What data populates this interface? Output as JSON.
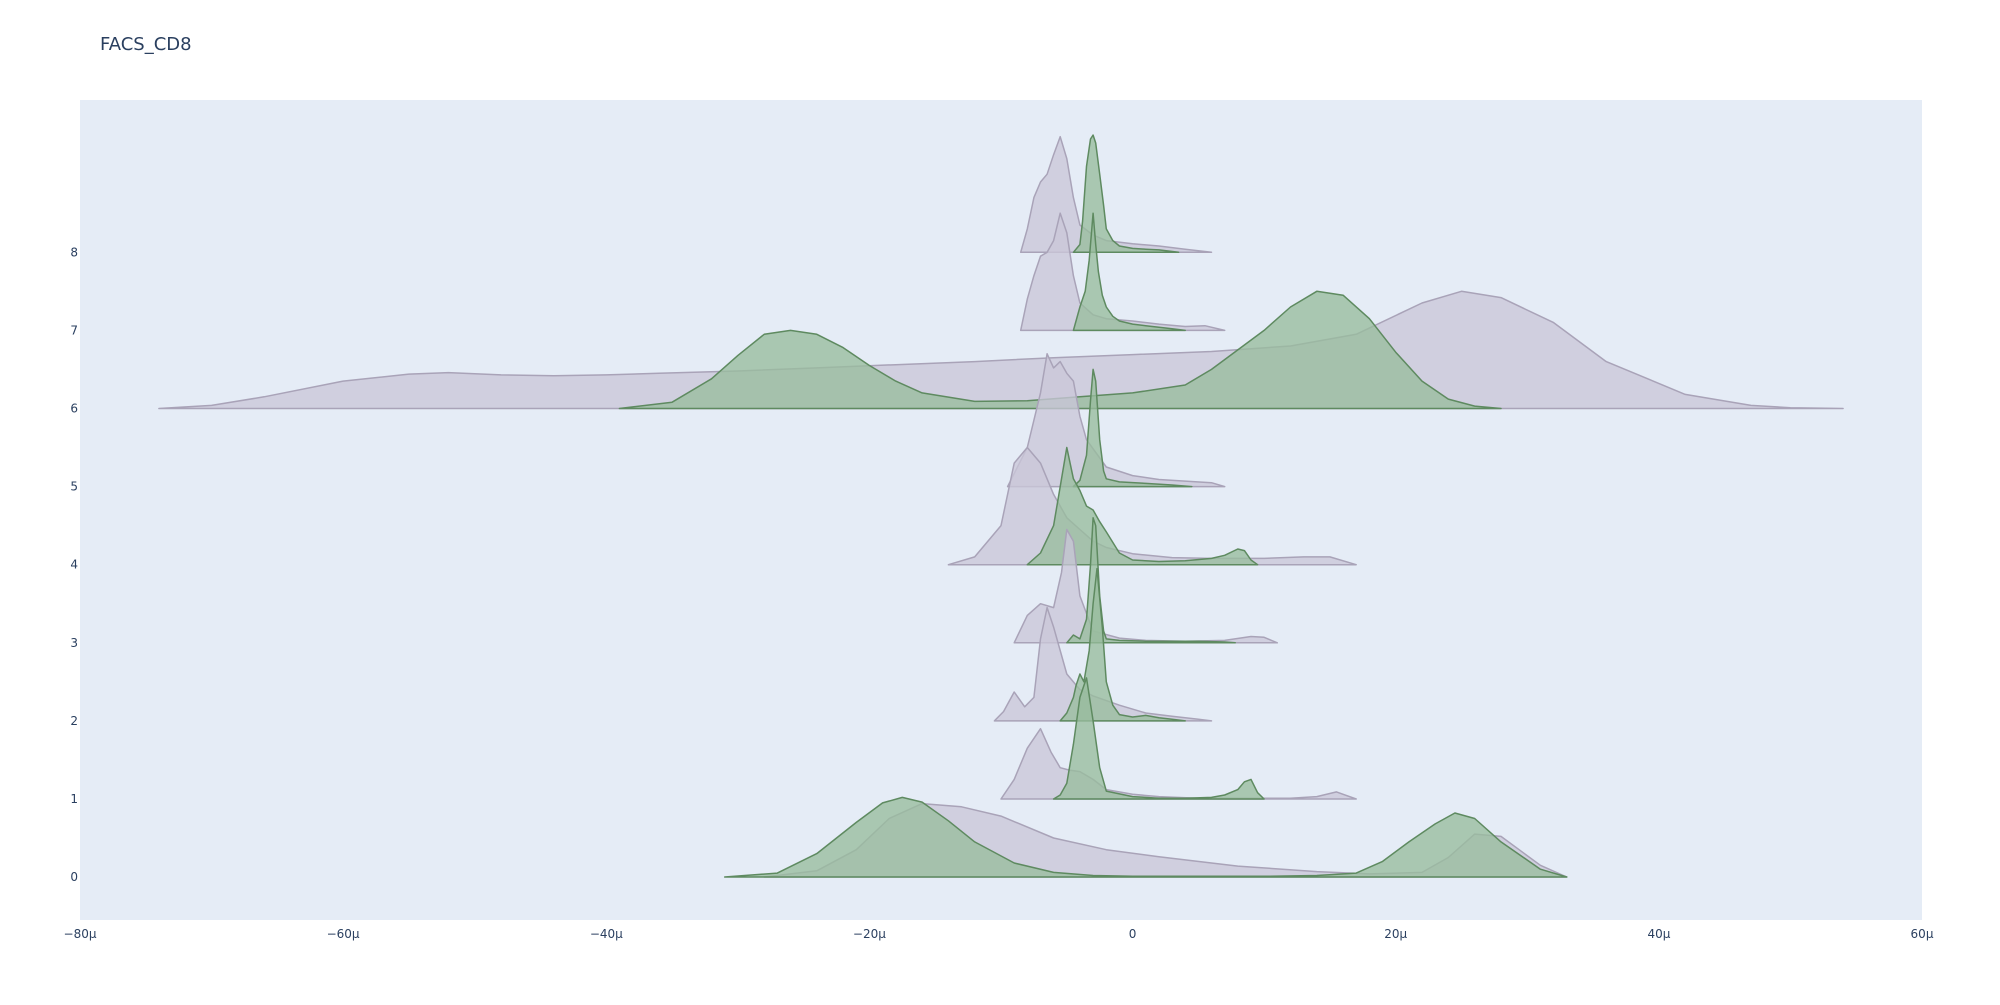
{
  "chart_data": {
    "type": "ridgeline",
    "title": "FACS_CD8",
    "xlabel": "",
    "ylabel": "",
    "xlim": [
      -80,
      60
    ],
    "ylim": [
      -0.55,
      9.95
    ],
    "x_unit": "μ",
    "x_ticks": [
      -80,
      -60,
      -40,
      -20,
      0,
      20,
      40,
      60
    ],
    "x_tick_labels": [
      "−80μ",
      "−60μ",
      "−40μ",
      "−20μ",
      "0",
      "20μ",
      "40μ",
      "60μ"
    ],
    "y_ticks": [
      0,
      1,
      2,
      3,
      4,
      5,
      6,
      7,
      8
    ],
    "y_tick_labels": [
      "0",
      "1",
      "2",
      "3",
      "4",
      "5",
      "6",
      "7",
      "8"
    ],
    "grid": false,
    "plot_bgcolor": "#e5ecf6",
    "series": [
      {
        "color": "#a9a3b8",
        "fill": "#cbc7d9",
        "ridges": [
          {
            "level": 0,
            "x": [
              -28,
              -24,
              -21,
              -18.5,
              -16,
              -13,
              -10,
              -6,
              -2,
              2,
              8,
              14,
              18,
              22,
              24,
              26,
              28,
              31,
              33
            ],
            "y": [
              0,
              0.08,
              0.35,
              0.75,
              0.94,
              0.9,
              0.78,
              0.5,
              0.35,
              0.26,
              0.14,
              0.07,
              0.04,
              0.06,
              0.25,
              0.55,
              0.52,
              0.15,
              0
            ]
          },
          {
            "level": 1,
            "x": [
              -10,
              -9,
              -8,
              -7,
              -6.2,
              -5.5,
              -4.8,
              -4,
              -3,
              -2,
              0,
              2,
              5,
              8,
              12,
              14,
              15.5,
              17
            ],
            "y": [
              0,
              0.25,
              0.65,
              0.9,
              0.6,
              0.4,
              0.37,
              0.35,
              0.25,
              0.12,
              0.06,
              0.03,
              0.01,
              0.01,
              0.01,
              0.03,
              0.09,
              0
            ]
          },
          {
            "level": 2,
            "x": [
              -10.5,
              -9.8,
              -9,
              -8.2,
              -7.5,
              -7,
              -6.5,
              -6,
              -5,
              -4,
              -3,
              -1,
              1,
              3,
              5,
              6
            ],
            "y": [
              0,
              0.12,
              0.37,
              0.18,
              0.3,
              1.05,
              1.45,
              1.2,
              0.6,
              0.4,
              0.32,
              0.2,
              0.1,
              0.06,
              0.02,
              0
            ]
          },
          {
            "level": 3,
            "x": [
              -9,
              -8,
              -7,
              -6,
              -5.4,
              -5,
              -4.5,
              -4,
              -3,
              -1,
              1,
              4,
              7,
              9,
              10,
              11
            ],
            "y": [
              0,
              0.35,
              0.5,
              0.45,
              0.9,
              1.45,
              1.3,
              0.6,
              0.15,
              0.06,
              0.03,
              0.02,
              0.03,
              0.08,
              0.07,
              0
            ]
          },
          {
            "level": 4,
            "x": [
              -14,
              -12,
              -10,
              -9,
              -8,
              -7,
              -6,
              -5,
              -4,
              -3,
              -2,
              0,
              3,
              6,
              10,
              13,
              15,
              17
            ],
            "y": [
              0,
              0.1,
              0.5,
              1.3,
              1.5,
              1.3,
              0.9,
              0.6,
              0.45,
              0.3,
              0.22,
              0.14,
              0.09,
              0.08,
              0.08,
              0.1,
              0.1,
              0
            ]
          },
          {
            "level": 5,
            "x": [
              -9.5,
              -8,
              -7,
              -6.5,
              -6,
              -5.5,
              -5,
              -4.5,
              -4,
              -3.5,
              -2,
              0,
              2,
              4,
              6,
              7
            ],
            "y": [
              0,
              0.5,
              1.2,
              1.7,
              1.52,
              1.6,
              1.45,
              1.35,
              0.9,
              0.6,
              0.25,
              0.14,
              0.09,
              0.07,
              0.05,
              0
            ]
          },
          {
            "level": 6,
            "x": [
              -74,
              -70,
              -66,
              -60,
              -55,
              -52,
              -48,
              -44,
              -40,
              -36,
              -30,
              -24,
              -18,
              -12,
              -6,
              0,
              6,
              12,
              17,
              22,
              25,
              28,
              32,
              36,
              42,
              47,
              50,
              54
            ],
            "y": [
              0,
              0.04,
              0.15,
              0.35,
              0.44,
              0.46,
              0.43,
              0.42,
              0.43,
              0.45,
              0.48,
              0.52,
              0.56,
              0.6,
              0.65,
              0.69,
              0.73,
              0.8,
              0.95,
              1.35,
              1.5,
              1.42,
              1.1,
              0.6,
              0.18,
              0.04,
              0.01,
              0
            ]
          },
          {
            "level": 7,
            "x": [
              -8.5,
              -8,
              -7.5,
              -7,
              -6.5,
              -6,
              -5.5,
              -5,
              -4.5,
              -4,
              -3,
              -2,
              0,
              2,
              4,
              5.5,
              7
            ],
            "y": [
              0,
              0.4,
              0.7,
              0.95,
              1.0,
              1.15,
              1.5,
              1.25,
              0.7,
              0.35,
              0.2,
              0.15,
              0.12,
              0.08,
              0.05,
              0.06,
              0
            ]
          },
          {
            "level": 8,
            "x": [
              -8.5,
              -8,
              -7.5,
              -7,
              -6.5,
              -6,
              -5.5,
              -5,
              -4.5,
              -4,
              -3,
              -2,
              0,
              2,
              4,
              6
            ],
            "y": [
              0,
              0.3,
              0.7,
              0.9,
              1.0,
              1.25,
              1.48,
              1.2,
              0.7,
              0.35,
              0.22,
              0.15,
              0.11,
              0.08,
              0.04,
              0
            ]
          }
        ]
      },
      {
        "color": "#5e8a60",
        "fill": "#99bc9d",
        "ridges": [
          {
            "level": 0,
            "x": [
              -31,
              -27,
              -24,
              -21,
              -19,
              -17.5,
              -16,
              -14,
              -12,
              -9,
              -6,
              -3,
              0,
              5,
              10,
              14,
              17,
              19,
              21,
              23,
              24.5,
              26,
              28,
              31,
              33
            ],
            "y": [
              0,
              0.05,
              0.3,
              0.7,
              0.95,
              1.02,
              0.96,
              0.72,
              0.45,
              0.18,
              0.06,
              0.02,
              0.01,
              0.01,
              0.01,
              0.02,
              0.05,
              0.2,
              0.45,
              0.68,
              0.82,
              0.75,
              0.45,
              0.1,
              0
            ]
          },
          {
            "level": 1,
            "x": [
              -6,
              -5.5,
              -5,
              -4.5,
              -4,
              -3.5,
              -3,
              -2.5,
              -2,
              0,
              2,
              4,
              6,
              7,
              8,
              8.5,
              9,
              9.5,
              10
            ],
            "y": [
              0,
              0.05,
              0.2,
              0.7,
              1.3,
              1.55,
              1.0,
              0.4,
              0.1,
              0.03,
              0.01,
              0.01,
              0.02,
              0.05,
              0.12,
              0.22,
              0.25,
              0.08,
              0
            ]
          },
          {
            "level": 2,
            "x": [
              -5.5,
              -5,
              -4.5,
              -4.3,
              -4,
              -3.7,
              -3.3,
              -3,
              -2.7,
              -2.3,
              -2,
              -1.5,
              -1,
              0,
              1,
              2,
              3,
              4
            ],
            "y": [
              0,
              0.1,
              0.3,
              0.45,
              0.6,
              0.5,
              0.9,
              1.5,
              1.95,
              1.2,
              0.5,
              0.2,
              0.08,
              0.05,
              0.07,
              0.04,
              0.02,
              0
            ]
          },
          {
            "level": 3,
            "x": [
              -5,
              -4.5,
              -4,
              -3.5,
              -3.2,
              -3,
              -2.8,
              -2.5,
              -2.2,
              -2,
              -1,
              1,
              3,
              5,
              7,
              7.8
            ],
            "y": [
              0,
              0.1,
              0.05,
              0.3,
              1.0,
              1.6,
              1.5,
              0.6,
              0.15,
              0.05,
              0.03,
              0.02,
              0.02,
              0.02,
              0.01,
              0
            ]
          },
          {
            "level": 4,
            "x": [
              -8,
              -7,
              -6,
              -5.5,
              -5,
              -4.5,
              -4,
              -3.5,
              -3,
              -2.5,
              -2,
              -1,
              0,
              2,
              4,
              6,
              7,
              8,
              8.5,
              9,
              9.5
            ],
            "y": [
              0,
              0.15,
              0.5,
              1.0,
              1.5,
              1.1,
              0.95,
              0.75,
              0.7,
              0.55,
              0.42,
              0.15,
              0.06,
              0.04,
              0.05,
              0.08,
              0.12,
              0.2,
              0.18,
              0.06,
              0
            ]
          },
          {
            "level": 5,
            "x": [
              -4.5,
              -4,
              -3.5,
              -3.2,
              -3,
              -2.8,
              -2.5,
              -2.2,
              -2,
              -1,
              1,
              3,
              4.5
            ],
            "y": [
              0,
              0.08,
              0.4,
              1.1,
              1.5,
              1.35,
              0.6,
              0.2,
              0.1,
              0.06,
              0.04,
              0.02,
              0
            ]
          },
          {
            "level": 6,
            "x": [
              -39,
              -35,
              -32,
              -30,
              -28,
              -26,
              -24,
              -22,
              -20,
              -18,
              -16,
              -12,
              -8,
              -4,
              0,
              4,
              6,
              8,
              10,
              12,
              14,
              16,
              18,
              20,
              22,
              24,
              26,
              28
            ],
            "y": [
              0,
              0.08,
              0.38,
              0.68,
              0.95,
              1.0,
              0.95,
              0.78,
              0.55,
              0.35,
              0.2,
              0.09,
              0.1,
              0.15,
              0.2,
              0.3,
              0.5,
              0.75,
              1.0,
              1.3,
              1.5,
              1.45,
              1.15,
              0.72,
              0.35,
              0.12,
              0.03,
              0
            ]
          },
          {
            "level": 7,
            "x": [
              -4.5,
              -4,
              -3.6,
              -3.3,
              -3,
              -2.8,
              -2.6,
              -2.3,
              -2,
              -1.5,
              -1,
              0,
              1,
              2,
              3,
              4
            ],
            "y": [
              0,
              0.3,
              0.5,
              0.9,
              1.5,
              1.1,
              0.75,
              0.45,
              0.3,
              0.18,
              0.12,
              0.08,
              0.06,
              0.04,
              0.02,
              0
            ]
          },
          {
            "level": 8,
            "x": [
              -4.5,
              -4,
              -3.8,
              -3.5,
              -3.2,
              -3,
              -2.8,
              -2.5,
              -2.2,
              -2,
              -1.5,
              -1,
              0,
              1,
              2,
              3.5
            ],
            "y": [
              0,
              0.1,
              0.4,
              1.1,
              1.45,
              1.5,
              1.4,
              1.0,
              0.6,
              0.3,
              0.15,
              0.08,
              0.05,
              0.04,
              0.03,
              0
            ]
          }
        ]
      }
    ]
  }
}
